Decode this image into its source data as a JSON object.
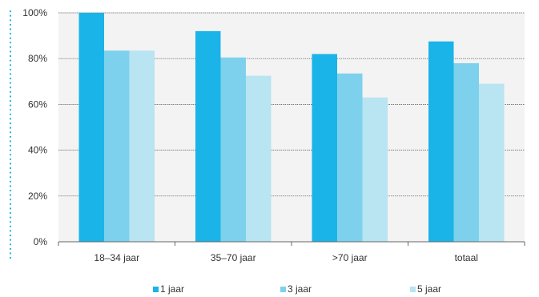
{
  "chart_data": {
    "type": "bar",
    "categories": [
      "18–34 jaar",
      "35–70 jaar",
      ">70 jaar",
      "totaal"
    ],
    "series": [
      {
        "name": "1 jaar",
        "values": [
          100,
          92,
          82,
          87.5
        ],
        "color": "#1ab4e8"
      },
      {
        "name": "3 jaar",
        "values": [
          83.5,
          80.5,
          73.5,
          78
        ],
        "color": "#7dd1ec"
      },
      {
        "name": "5 jaar",
        "values": [
          83.5,
          72.5,
          63,
          69
        ],
        "color": "#b9e4f2"
      }
    ],
    "yticks": [
      "0%",
      "20%",
      "40%",
      "60%",
      "80%",
      "100%"
    ],
    "ylim": [
      0,
      100
    ],
    "grid": true,
    "legend_position": "bottom",
    "colors": {
      "plot_background": "#f3f3f3",
      "dotted_line": "#1ab4e8"
    }
  }
}
